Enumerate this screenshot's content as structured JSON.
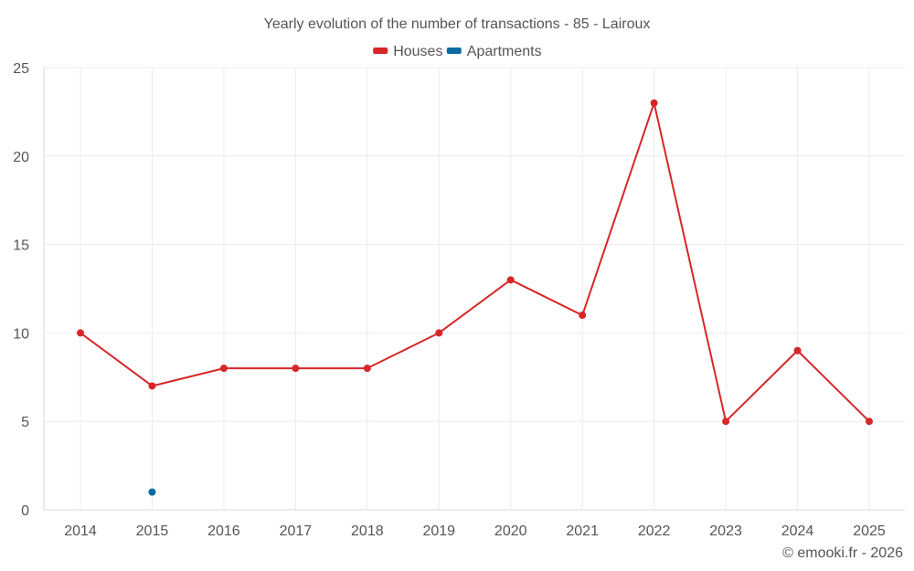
{
  "chart_data": {
    "type": "line",
    "title": "Yearly evolution of the number of transactions - 85 - Lairoux",
    "xlabel": "",
    "ylabel": "",
    "categories": [
      "2014",
      "2015",
      "2016",
      "2017",
      "2018",
      "2019",
      "2020",
      "2021",
      "2022",
      "2023",
      "2024",
      "2025"
    ],
    "ylim": [
      0,
      25
    ],
    "yticks": [
      "0",
      "5",
      "10",
      "15",
      "20",
      "25"
    ],
    "grid": true,
    "legend_position": "top-center",
    "series": [
      {
        "name": "Houses",
        "color": "#d62728",
        "values": [
          10,
          7,
          8,
          8,
          8,
          10,
          13,
          11,
          23,
          5,
          9,
          5
        ]
      },
      {
        "name": "Apartments",
        "color": "#0b6aa2",
        "values": [
          null,
          1,
          null,
          null,
          null,
          null,
          null,
          null,
          null,
          null,
          null,
          null
        ]
      }
    ]
  },
  "footer": {
    "credit": "© emooki.fr - 2026"
  }
}
